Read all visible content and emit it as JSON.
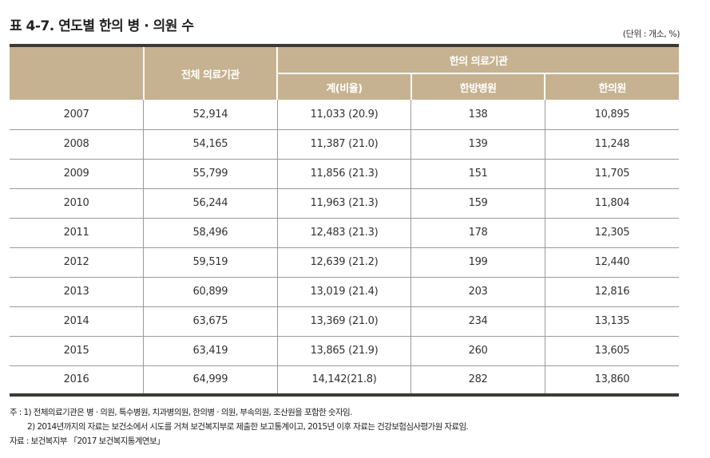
{
  "title": "표 4-7. 연도별 한의 병 · 의원 수",
  "unit": "(단위 : 개소, %)",
  "headers": {
    "total": "전체 의료기관",
    "korean_medicine": "한의 의료기관",
    "sum": "계(비율)",
    "hospital": "한방병원",
    "clinic": "한의원"
  },
  "rows": [
    [
      "2007",
      "52,914",
      "11,033 (20.9)",
      "138",
      "10,895"
    ],
    [
      "2008",
      "54,165",
      "11,387 (21.0)",
      "139",
      "11,248"
    ],
    [
      "2009",
      "55,799",
      "11,856 (21.3)",
      "151",
      "11,705"
    ],
    [
      "2010",
      "56,244",
      "11,963 (21.3)",
      "159",
      "11,804"
    ],
    [
      "2011",
      "58,496",
      "12,483 (21.3)",
      "178",
      "12,305"
    ],
    [
      "2012",
      "59,519",
      "12,639 (21.2)",
      "199",
      "12,440"
    ],
    [
      "2013",
      "60,899",
      "13,019 (21.4)",
      "203",
      "12,816"
    ],
    [
      "2014",
      "63,675",
      "13,369 (21.0)",
      "234",
      "13,135"
    ],
    [
      "2015",
      "63,419",
      "13,865 (21.9)",
      "260",
      "13,605"
    ],
    [
      "2016",
      "64,999",
      "14,142(21.8)",
      "282",
      "13,860"
    ]
  ],
  "notes": {
    "note1": "주 : 1) 전체의료기관은 병 · 의원, 특수병원, 치과병의원, 한의병 · 의원, 부속의원, 조산원을 포함한 숫자임.",
    "note2": "2) 2014년까지의 자료는 보건소에서 시도를 거쳐 보건복지부로 제출한 보고통계이고, 2015년 이후 자료는 건강보험심사평가원 자료임.",
    "source": "자료 : 보건복지부 「2017 보건복지통계연보」"
  }
}
